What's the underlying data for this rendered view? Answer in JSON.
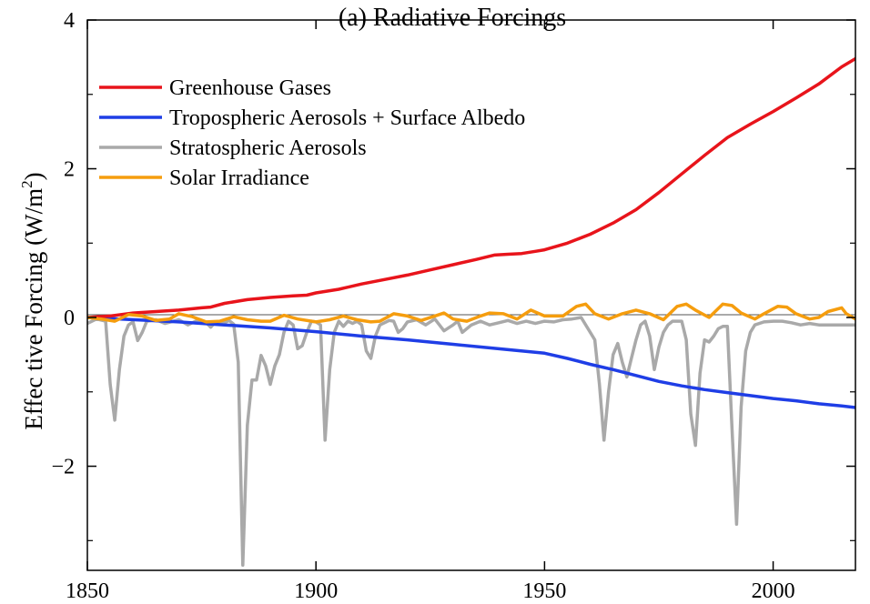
{
  "chart_data": {
    "type": "line",
    "title": "(a) Radiative Forcings",
    "xlabel": "",
    "ylabel": "Effec tive Forcing (W/m",
    "ylabel_sup": "2",
    "ylabel_close": ")",
    "xlim": [
      1850,
      2018
    ],
    "ylim": [
      -3.4,
      4
    ],
    "x_ticks": [
      1850,
      1900,
      1950,
      2000
    ],
    "x_tick_labels": [
      "1850",
      "1900",
      "1950",
      "2000"
    ],
    "y_ticks": [
      -2,
      0,
      2,
      4
    ],
    "y_tick_labels": [
      "−2",
      "0",
      "2",
      "4"
    ],
    "minor_y_ticks": [
      -3,
      -1,
      1,
      3
    ],
    "zero_line": true,
    "grid": false,
    "legend_position": "top-left",
    "series": [
      {
        "name": "Greenhouse Gases",
        "color": "#e8141b",
        "points": [
          [
            1850,
            0.0
          ],
          [
            1855,
            0.02
          ],
          [
            1860,
            0.06
          ],
          [
            1865,
            0.08
          ],
          [
            1870,
            0.1
          ],
          [
            1875,
            0.13
          ],
          [
            1877,
            0.14
          ],
          [
            1880,
            0.19
          ],
          [
            1885,
            0.24
          ],
          [
            1890,
            0.27
          ],
          [
            1895,
            0.29
          ],
          [
            1898,
            0.3
          ],
          [
            1900,
            0.33
          ],
          [
            1905,
            0.38
          ],
          [
            1910,
            0.45
          ],
          [
            1915,
            0.51
          ],
          [
            1920,
            0.57
          ],
          [
            1925,
            0.64
          ],
          [
            1930,
            0.71
          ],
          [
            1935,
            0.78
          ],
          [
            1939,
            0.84
          ],
          [
            1942,
            0.85
          ],
          [
            1945,
            0.86
          ],
          [
            1948,
            0.89
          ],
          [
            1950,
            0.91
          ],
          [
            1955,
            1.0
          ],
          [
            1960,
            1.12
          ],
          [
            1965,
            1.27
          ],
          [
            1970,
            1.45
          ],
          [
            1975,
            1.68
          ],
          [
            1980,
            1.93
          ],
          [
            1985,
            2.18
          ],
          [
            1990,
            2.42
          ],
          [
            1995,
            2.6
          ],
          [
            2000,
            2.77
          ],
          [
            2005,
            2.95
          ],
          [
            2010,
            3.14
          ],
          [
            2015,
            3.37
          ],
          [
            2018,
            3.48
          ]
        ]
      },
      {
        "name": "Tropospheric Aerosols + Surface Albedo",
        "color": "#1f3ee6",
        "points": [
          [
            1850,
            0.0
          ],
          [
            1870,
            -0.06
          ],
          [
            1880,
            -0.1
          ],
          [
            1890,
            -0.14
          ],
          [
            1900,
            -0.19
          ],
          [
            1910,
            -0.25
          ],
          [
            1920,
            -0.3
          ],
          [
            1930,
            -0.36
          ],
          [
            1940,
            -0.42
          ],
          [
            1950,
            -0.48
          ],
          [
            1955,
            -0.55
          ],
          [
            1960,
            -0.63
          ],
          [
            1965,
            -0.7
          ],
          [
            1970,
            -0.78
          ],
          [
            1975,
            -0.86
          ],
          [
            1980,
            -0.92
          ],
          [
            1985,
            -0.97
          ],
          [
            1990,
            -1.01
          ],
          [
            1995,
            -1.05
          ],
          [
            2000,
            -1.09
          ],
          [
            2005,
            -1.12
          ],
          [
            2010,
            -1.16
          ],
          [
            2015,
            -1.19
          ],
          [
            2018,
            -1.21
          ]
        ]
      },
      {
        "name": "Stratospheric Aerosols",
        "color": "#a9a9a9",
        "points": [
          [
            1850,
            -0.08
          ],
          [
            1852,
            -0.02
          ],
          [
            1854,
            -0.05
          ],
          [
            1855,
            -0.9
          ],
          [
            1856,
            -1.38
          ],
          [
            1857,
            -0.7
          ],
          [
            1858,
            -0.25
          ],
          [
            1859,
            -0.1
          ],
          [
            1860,
            -0.06
          ],
          [
            1861,
            -0.31
          ],
          [
            1862,
            -0.2
          ],
          [
            1863,
            -0.05
          ],
          [
            1865,
            -0.03
          ],
          [
            1867,
            -0.08
          ],
          [
            1870,
            -0.03
          ],
          [
            1872,
            -0.1
          ],
          [
            1874,
            -0.04
          ],
          [
            1876,
            -0.07
          ],
          [
            1877,
            -0.13
          ],
          [
            1878,
            -0.06
          ],
          [
            1880,
            -0.07
          ],
          [
            1881,
            -0.04
          ],
          [
            1882,
            -0.09
          ],
          [
            1883,
            -0.6
          ],
          [
            1884,
            -3.33
          ],
          [
            1885,
            -1.45
          ],
          [
            1886,
            -0.84
          ],
          [
            1887,
            -0.84
          ],
          [
            1888,
            -0.51
          ],
          [
            1889,
            -0.65
          ],
          [
            1890,
            -0.9
          ],
          [
            1891,
            -0.65
          ],
          [
            1892,
            -0.5
          ],
          [
            1893,
            -0.2
          ],
          [
            1894,
            -0.05
          ],
          [
            1895,
            -0.1
          ],
          [
            1896,
            -0.42
          ],
          [
            1897,
            -0.38
          ],
          [
            1898,
            -0.2
          ],
          [
            1899,
            -0.05
          ],
          [
            1900,
            -0.06
          ],
          [
            1901,
            -0.1
          ],
          [
            1902,
            -1.65
          ],
          [
            1903,
            -0.7
          ],
          [
            1904,
            -0.2
          ],
          [
            1905,
            -0.05
          ],
          [
            1906,
            -0.12
          ],
          [
            1907,
            -0.05
          ],
          [
            1908,
            -0.08
          ],
          [
            1909,
            -0.05
          ],
          [
            1910,
            -0.1
          ],
          [
            1911,
            -0.45
          ],
          [
            1912,
            -0.55
          ],
          [
            1913,
            -0.25
          ],
          [
            1914,
            -0.1
          ],
          [
            1915,
            -0.07
          ],
          [
            1916,
            -0.04
          ],
          [
            1917,
            -0.05
          ],
          [
            1918,
            -0.2
          ],
          [
            1919,
            -0.15
          ],
          [
            1920,
            -0.06
          ],
          [
            1922,
            -0.03
          ],
          [
            1924,
            -0.1
          ],
          [
            1926,
            -0.02
          ],
          [
            1928,
            -0.18
          ],
          [
            1930,
            -0.1
          ],
          [
            1931,
            -0.05
          ],
          [
            1932,
            -0.2
          ],
          [
            1934,
            -0.1
          ],
          [
            1936,
            -0.05
          ],
          [
            1938,
            -0.1
          ],
          [
            1940,
            -0.07
          ],
          [
            1942,
            -0.04
          ],
          [
            1944,
            -0.08
          ],
          [
            1946,
            -0.05
          ],
          [
            1948,
            -0.08
          ],
          [
            1950,
            -0.05
          ],
          [
            1952,
            -0.06
          ],
          [
            1954,
            -0.03
          ],
          [
            1956,
            -0.02
          ],
          [
            1958,
            0.0
          ],
          [
            1960,
            -0.2
          ],
          [
            1961,
            -0.3
          ],
          [
            1962,
            -0.9
          ],
          [
            1963,
            -1.65
          ],
          [
            1964,
            -1.0
          ],
          [
            1965,
            -0.5
          ],
          [
            1966,
            -0.35
          ],
          [
            1967,
            -0.6
          ],
          [
            1968,
            -0.8
          ],
          [
            1969,
            -0.55
          ],
          [
            1970,
            -0.3
          ],
          [
            1971,
            -0.1
          ],
          [
            1972,
            -0.05
          ],
          [
            1973,
            -0.25
          ],
          [
            1974,
            -0.7
          ],
          [
            1975,
            -0.4
          ],
          [
            1976,
            -0.2
          ],
          [
            1977,
            -0.1
          ],
          [
            1978,
            -0.05
          ],
          [
            1980,
            -0.05
          ],
          [
            1981,
            -0.3
          ],
          [
            1982,
            -1.3
          ],
          [
            1983,
            -1.72
          ],
          [
            1984,
            -0.75
          ],
          [
            1985,
            -0.3
          ],
          [
            1986,
            -0.33
          ],
          [
            1987,
            -0.25
          ],
          [
            1988,
            -0.15
          ],
          [
            1989,
            -0.12
          ],
          [
            1990,
            -0.12
          ],
          [
            1991,
            -1.5
          ],
          [
            1992,
            -2.78
          ],
          [
            1993,
            -1.2
          ],
          [
            1994,
            -0.45
          ],
          [
            1995,
            -0.2
          ],
          [
            1996,
            -0.1
          ],
          [
            1998,
            -0.06
          ],
          [
            2000,
            -0.05
          ],
          [
            2002,
            -0.05
          ],
          [
            2004,
            -0.07
          ],
          [
            2006,
            -0.1
          ],
          [
            2008,
            -0.08
          ],
          [
            2010,
            -0.1
          ],
          [
            2012,
            -0.1
          ],
          [
            2015,
            -0.1
          ],
          [
            2018,
            -0.1
          ]
        ]
      },
      {
        "name": "Solar Irradiance",
        "color": "#f59d0e",
        "points": [
          [
            1850,
            0.0
          ],
          [
            1853,
            -0.02
          ],
          [
            1856,
            -0.05
          ],
          [
            1859,
            0.04
          ],
          [
            1862,
            0.02
          ],
          [
            1865,
            -0.04
          ],
          [
            1868,
            -0.02
          ],
          [
            1870,
            0.05
          ],
          [
            1873,
            0.01
          ],
          [
            1876,
            -0.06
          ],
          [
            1879,
            -0.05
          ],
          [
            1882,
            0.01
          ],
          [
            1885,
            -0.03
          ],
          [
            1888,
            -0.05
          ],
          [
            1890,
            -0.05
          ],
          [
            1893,
            0.03
          ],
          [
            1896,
            -0.02
          ],
          [
            1900,
            -0.06
          ],
          [
            1903,
            -0.03
          ],
          [
            1906,
            0.02
          ],
          [
            1909,
            -0.03
          ],
          [
            1912,
            -0.06
          ],
          [
            1914,
            -0.05
          ],
          [
            1917,
            0.05
          ],
          [
            1920,
            0.02
          ],
          [
            1923,
            -0.04
          ],
          [
            1926,
            0.02
          ],
          [
            1928,
            0.06
          ],
          [
            1930,
            -0.02
          ],
          [
            1933,
            -0.05
          ],
          [
            1936,
            0.02
          ],
          [
            1938,
            0.06
          ],
          [
            1941,
            0.05
          ],
          [
            1944,
            -0.02
          ],
          [
            1947,
            0.1
          ],
          [
            1950,
            0.02
          ],
          [
            1954,
            0.02
          ],
          [
            1957,
            0.15
          ],
          [
            1959,
            0.18
          ],
          [
            1961,
            0.05
          ],
          [
            1964,
            -0.02
          ],
          [
            1967,
            0.05
          ],
          [
            1970,
            0.1
          ],
          [
            1973,
            0.05
          ],
          [
            1976,
            -0.03
          ],
          [
            1979,
            0.15
          ],
          [
            1981,
            0.18
          ],
          [
            1983,
            0.1
          ],
          [
            1986,
            0.0
          ],
          [
            1989,
            0.18
          ],
          [
            1991,
            0.16
          ],
          [
            1993,
            0.06
          ],
          [
            1996,
            -0.02
          ],
          [
            1998,
            0.05
          ],
          [
            2001,
            0.15
          ],
          [
            2003,
            0.14
          ],
          [
            2005,
            0.05
          ],
          [
            2008,
            -0.02
          ],
          [
            2010,
            0.0
          ],
          [
            2012,
            0.08
          ],
          [
            2015,
            0.13
          ],
          [
            2016,
            0.05
          ],
          [
            2018,
            -0.02
          ]
        ]
      }
    ]
  }
}
